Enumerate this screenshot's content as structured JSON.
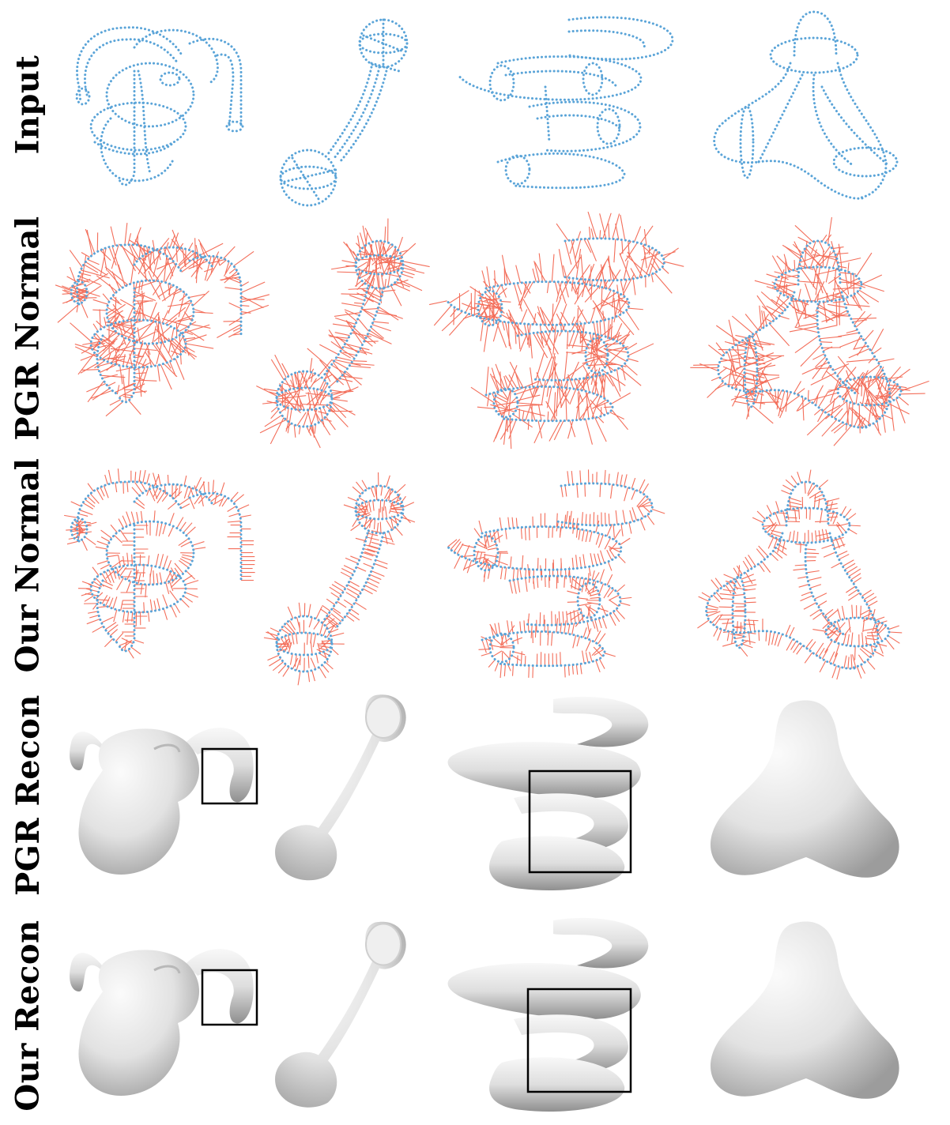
{
  "rows": [
    {
      "label": "Input",
      "kind": "input"
    },
    {
      "label": "PGR Normal",
      "kind": "normals-noisy"
    },
    {
      "label": "Our Normal",
      "kind": "normals-clean"
    },
    {
      "label": "PGR Recon",
      "kind": "recon"
    },
    {
      "label": "Our Recon",
      "kind": "recon"
    }
  ],
  "shapes": [
    "ram-head",
    "telephone-handset",
    "spiral-spring",
    "tripod-blob"
  ],
  "colors": {
    "points": "#5aa4d8",
    "normals": "#f36e5a",
    "surface_light": "#f4f4f4",
    "surface_mid": "#dcdcdc",
    "surface_dark": "#a8a8a8",
    "box": "#000000"
  }
}
